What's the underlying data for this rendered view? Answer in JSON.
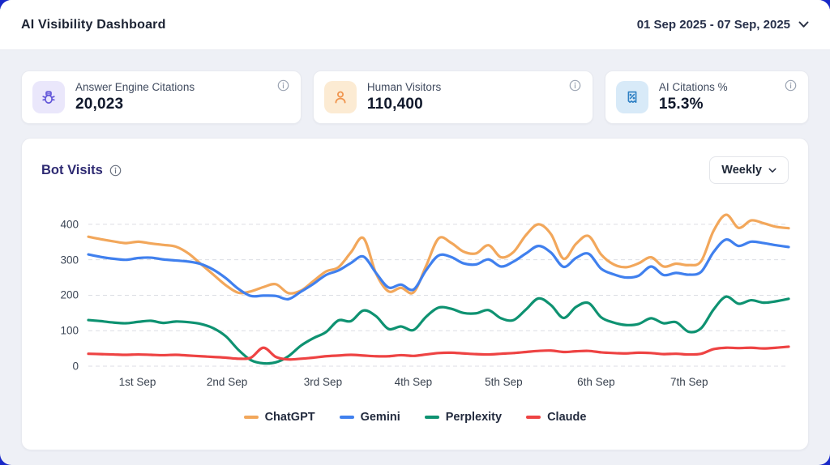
{
  "header": {
    "title": "AI Visibility Dashboard",
    "date_range": "01 Sep 2025 - 07 Sep, 2025"
  },
  "stat_cards": [
    {
      "label": "Answer Engine Citations",
      "value": "20,023",
      "icon": "bot-icon",
      "icon_color": "#6357D9",
      "icon_bg": "#EAE7FB"
    },
    {
      "label": "Human Visitors",
      "value": "110,400",
      "icon": "person-icon",
      "icon_color": "#F0954E",
      "icon_bg": "#FCEBD3"
    },
    {
      "label": "AI Citations %",
      "value": "15.3%",
      "icon": "citation-percent-icon",
      "icon_color": "#2E80C4",
      "icon_bg": "#D8EAF8"
    }
  ],
  "chart_panel": {
    "title": "Bot Visits",
    "range_selector": "Weekly"
  },
  "chart_data": {
    "type": "line",
    "title": "Bot Visits",
    "xlabel": "",
    "ylabel": "",
    "ylim": [
      0,
      450
    ],
    "y_ticks": [
      0,
      100,
      200,
      300,
      400
    ],
    "grid": "dashed-horizontal",
    "legend_position": "bottom",
    "x_labels": [
      "1st Sep",
      "2nd Sep",
      "3rd Sep",
      "4th Sep",
      "5th Sep",
      "6th Sep",
      "7th Sep"
    ],
    "x_label_positions_pct": [
      7.0,
      19.8,
      33.5,
      46.4,
      59.3,
      72.5,
      85.8
    ],
    "series": [
      {
        "name": "ChatGPT",
        "color": "#F2A75B",
        "values": [
          365,
          358,
          352,
          347,
          351,
          346,
          342,
          337,
          318,
          288,
          258,
          228,
          207,
          211,
          223,
          231,
          206,
          213,
          240,
          267,
          279,
          321,
          361,
          262,
          211,
          221,
          208,
          282,
          360,
          348,
          323,
          318,
          341,
          307,
          322,
          370,
          400,
          372,
          303,
          345,
          367,
          315,
          287,
          279,
          290,
          307,
          281,
          289,
          285,
          296,
          382,
          427,
          390,
          411,
          403,
          393,
          389
        ]
      },
      {
        "name": "Gemini",
        "color": "#4080EE",
        "values": [
          315,
          308,
          303,
          300,
          305,
          306,
          301,
          298,
          295,
          288,
          272,
          248,
          218,
          198,
          199,
          198,
          189,
          210,
          232,
          257,
          270,
          291,
          309,
          263,
          222,
          230,
          216,
          270,
          312,
          308,
          290,
          287,
          301,
          281,
          295,
          318,
          339,
          320,
          280,
          305,
          317,
          275,
          259,
          250,
          255,
          281,
          257,
          263,
          258,
          266,
          322,
          357,
          339,
          351,
          347,
          341,
          336
        ]
      },
      {
        "name": "Perplexity",
        "color": "#0E9271",
        "values": [
          130,
          127,
          123,
          121,
          125,
          128,
          122,
          126,
          124,
          119,
          107,
          84,
          46,
          17,
          8,
          11,
          28,
          58,
          79,
          96,
          129,
          127,
          157,
          141,
          105,
          112,
          102,
          139,
          165,
          162,
          150,
          149,
          158,
          135,
          130,
          160,
          191,
          172,
          136,
          167,
          178,
          138,
          123,
          116,
          119,
          135,
          121,
          124,
          97,
          107,
          160,
          196,
          176,
          186,
          179,
          183,
          190
        ]
      },
      {
        "name": "Claude",
        "color": "#EE4343",
        "values": [
          35,
          34,
          33,
          32,
          33,
          32,
          31,
          32,
          30,
          28,
          26,
          24,
          21,
          24,
          52,
          26,
          19,
          21,
          24,
          28,
          30,
          32,
          30,
          28,
          28,
          31,
          29,
          33,
          37,
          38,
          36,
          34,
          33,
          35,
          37,
          40,
          43,
          44,
          40,
          42,
          43,
          39,
          37,
          36,
          38,
          37,
          34,
          35,
          33,
          35,
          48,
          52,
          51,
          52,
          50,
          52,
          55
        ]
      }
    ]
  }
}
